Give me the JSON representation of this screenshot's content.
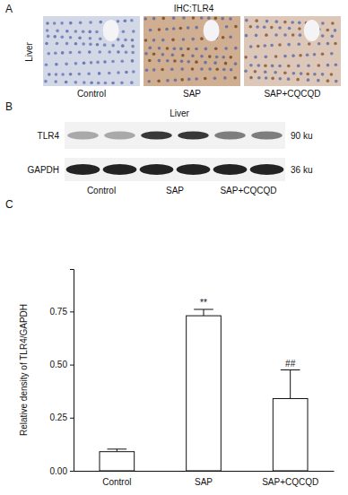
{
  "panels": {
    "a": {
      "label": "A",
      "title": "IHC:TLR4",
      "row_label": "Liver",
      "image_labels": [
        "Control",
        "SAP",
        "SAP+CQCQD"
      ]
    },
    "b": {
      "label": "B",
      "title": "Liver",
      "rows": [
        {
          "name": "TLR4",
          "size": "90 ku"
        },
        {
          "name": "GAPDH",
          "size": "36 ku"
        }
      ],
      "lane_labels": [
        "Control",
        "SAP",
        "SAP+CQCQD"
      ]
    },
    "c": {
      "label": "C"
    }
  },
  "chart_data": {
    "type": "bar",
    "categories": [
      "Control",
      "SAP",
      "SAP+CQCQD"
    ],
    "values": [
      0.09,
      0.73,
      0.34
    ],
    "errors": [
      0.012,
      0.03,
      0.135
    ],
    "annotations": [
      null,
      "**",
      "##"
    ],
    "color": "#ffffff",
    "ylabel": "Relative density of TLR4/GAPDH",
    "ylim": [
      0,
      0.95
    ],
    "yticks": [
      {
        "value": 0,
        "label": "0.00"
      },
      {
        "value": 0.25,
        "label": "0.25"
      },
      {
        "value": 0.5,
        "label": "0.50"
      },
      {
        "value": 0.75,
        "label": "0.75"
      }
    ]
  }
}
